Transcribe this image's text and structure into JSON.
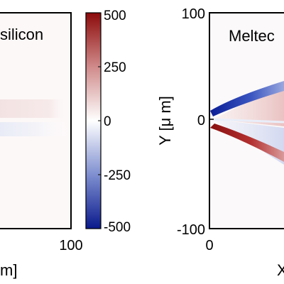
{
  "chart_data": [
    {
      "type": "heatmap",
      "title": "silicon",
      "xlabel": "m]",
      "x_ticks": [
        "100"
      ],
      "colorbar": {
        "ticks": [
          500,
          250,
          0,
          -250,
          -500
        ],
        "range": [
          -500,
          500
        ],
        "colors": {
          "neg": "#0d1f8f",
          "zero": "#ffffff",
          "pos": "#8f0d0d"
        }
      },
      "features": [
        {
          "kind": "faint-band",
          "y_fraction": 0.45,
          "sign": "positive"
        },
        {
          "kind": "faint-band",
          "y_fraction": 0.58,
          "sign": "negative"
        }
      ]
    },
    {
      "type": "heatmap",
      "title": "Meltec",
      "xlabel": "X",
      "ylabel": "Y [μ m]",
      "x_ticks": [
        "0"
      ],
      "y_ticks": [
        "100",
        "0",
        "-100"
      ],
      "ylim": [
        -100,
        100
      ],
      "features": [
        {
          "kind": "wedge-lobe",
          "sign": "negative",
          "side": "upper"
        },
        {
          "kind": "wedge-lobe",
          "sign": "positive",
          "side": "lower"
        }
      ]
    }
  ]
}
